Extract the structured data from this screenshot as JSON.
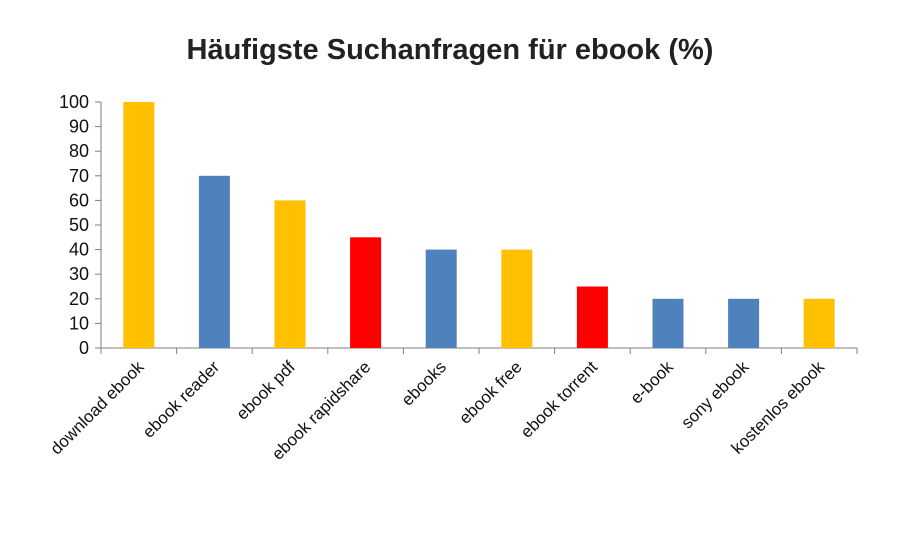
{
  "chart_data": {
    "type": "bar",
    "title": "Häufigste Suchanfragen  für ebook (%)",
    "xlabel": "",
    "ylabel": "",
    "ylim": [
      0,
      100
    ],
    "yticks": [
      0,
      10,
      20,
      30,
      40,
      50,
      60,
      70,
      80,
      90,
      100
    ],
    "grid": false,
    "legend": "none",
    "categories": [
      "download ebook",
      "ebook reader",
      "ebook pdf",
      "ebook rapidshare",
      "ebooks",
      "ebook free",
      "ebook torrent",
      "e-book",
      "sony ebook",
      "kostenlos ebook"
    ],
    "values": [
      100,
      70,
      60,
      45,
      40,
      40,
      25,
      20,
      20,
      20
    ],
    "bar_colors": [
      "#FFC000",
      "#4F81BD",
      "#FFC000",
      "#FF0000",
      "#4F81BD",
      "#FFC000",
      "#FF0000",
      "#4F81BD",
      "#4F81BD",
      "#FFC000"
    ],
    "axis_color": "#7F7F7F"
  }
}
